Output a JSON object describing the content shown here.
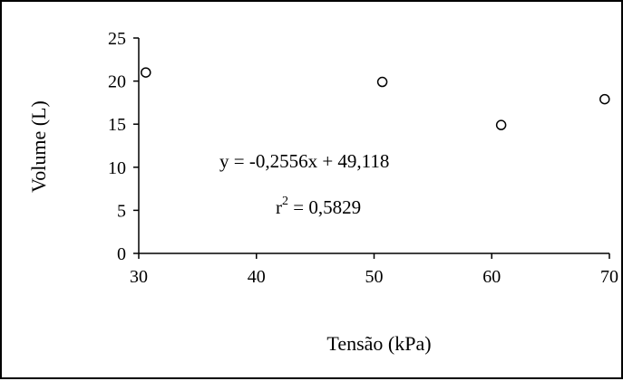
{
  "chart_data": {
    "type": "scatter",
    "title": "",
    "xlabel": "Tensão (kPa)",
    "ylabel": "Volume (L)",
    "xlim": [
      30,
      70
    ],
    "ylim": [
      0,
      25
    ],
    "x_ticks": [
      "30",
      "40",
      "50",
      "60",
      "70"
    ],
    "y_ticks": [
      "0",
      "5",
      "10",
      "15",
      "20",
      "25"
    ],
    "grid": false,
    "series": [
      {
        "marker": "open-circle",
        "points": [
          {
            "x": 30.6,
            "y": 21.0
          },
          {
            "x": 50.7,
            "y": 19.9
          },
          {
            "x": 60.8,
            "y": 14.9
          },
          {
            "x": 69.6,
            "y": 17.9
          }
        ]
      }
    ],
    "trendline": {
      "slope": -0.2556,
      "intercept": 49.118,
      "x_range": [
        30,
        70
      ]
    },
    "annotations": {
      "equation": "y = -0,2556x + 49,118",
      "r_label": "r",
      "r_exponent": "2",
      "r_value": " = 0,5829"
    },
    "colors": {
      "axis": "#000000",
      "marker": "#000000",
      "line": "#000000"
    }
  }
}
